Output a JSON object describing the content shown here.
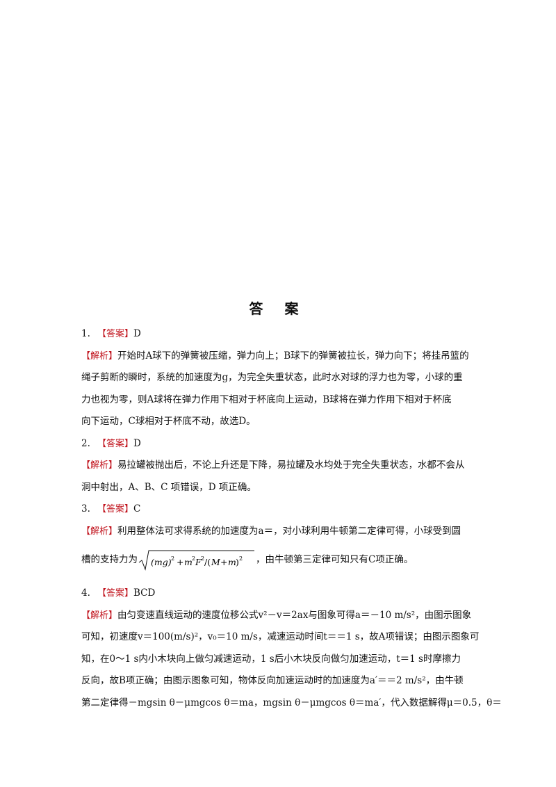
{
  "title": "答 案",
  "items": [
    {
      "number": "1.",
      "answer_tag": "【答案】",
      "answer": "D",
      "analysis_tag": "【解析】",
      "lines": [
        "开始时A球下的弹簧被压缩，弹力向上；B球下的弹簧被拉长，弹力向下；将挂吊篮的",
        "绳子剪断的瞬时，系统的加速度为g，为完全失重状态，此时水对球的浮力也为零，小球的重",
        "力也视为零，则A球将在弹力作用下相对于杯底向上运动，B球将在弹力作用下相对于杯底",
        "向下运动，C球相对于杯底不动，故选D。"
      ]
    },
    {
      "number": "2.",
      "answer_tag": "【答案】",
      "answer": "D",
      "analysis_tag": "【解析】",
      "lines": [
        "易拉罐被抛出后，不论上升还是下降，易拉罐及水均处于完全失重状态，水都不会从",
        "洞中射出，A、B、C 项错误，D 项正确。"
      ]
    },
    {
      "number": "3.",
      "answer_tag": "【答案】",
      "answer": "C",
      "analysis_tag": "【解析】",
      "lines": [
        "利用整体法可求得系统的加速度为a＝，对小球利用牛顿第二定律可得，小球受到圆"
      ],
      "formula_prefix": "槽的支持力为",
      "formula": "√((mg)² + m²F²/(M + m)²)",
      "formula_suffix": "，由牛顿第三定律可知只有C项正确。"
    },
    {
      "number": "4.",
      "answer_tag": "【答案】",
      "answer": "BCD",
      "analysis_tag": "【解析】",
      "lines": [
        "由匀变速直线运动的速度位移公式v²－v＝2ax与图象可得a＝－10 m/s²，由图示图象",
        "可知，初速度v＝100(m/s)²，v₀＝10 m/s，减速运动时间t＝＝1 s，故A项错误；由图示图象可",
        "知，在0～1 s内小木块向上做匀减速运动，1 s后小木块反向做匀加速运动，t＝1 s时摩擦力",
        "反向，故B项正确；由图示图象可知，物体反向加速运动时的加速度为a′＝＝2 m/s²，由牛顿",
        "第二定律得－mgsin θ－μmgcos θ＝ma，mgsin θ－μmgcos θ＝ma′，代入数据解得μ＝0.5，θ＝"
      ]
    }
  ]
}
